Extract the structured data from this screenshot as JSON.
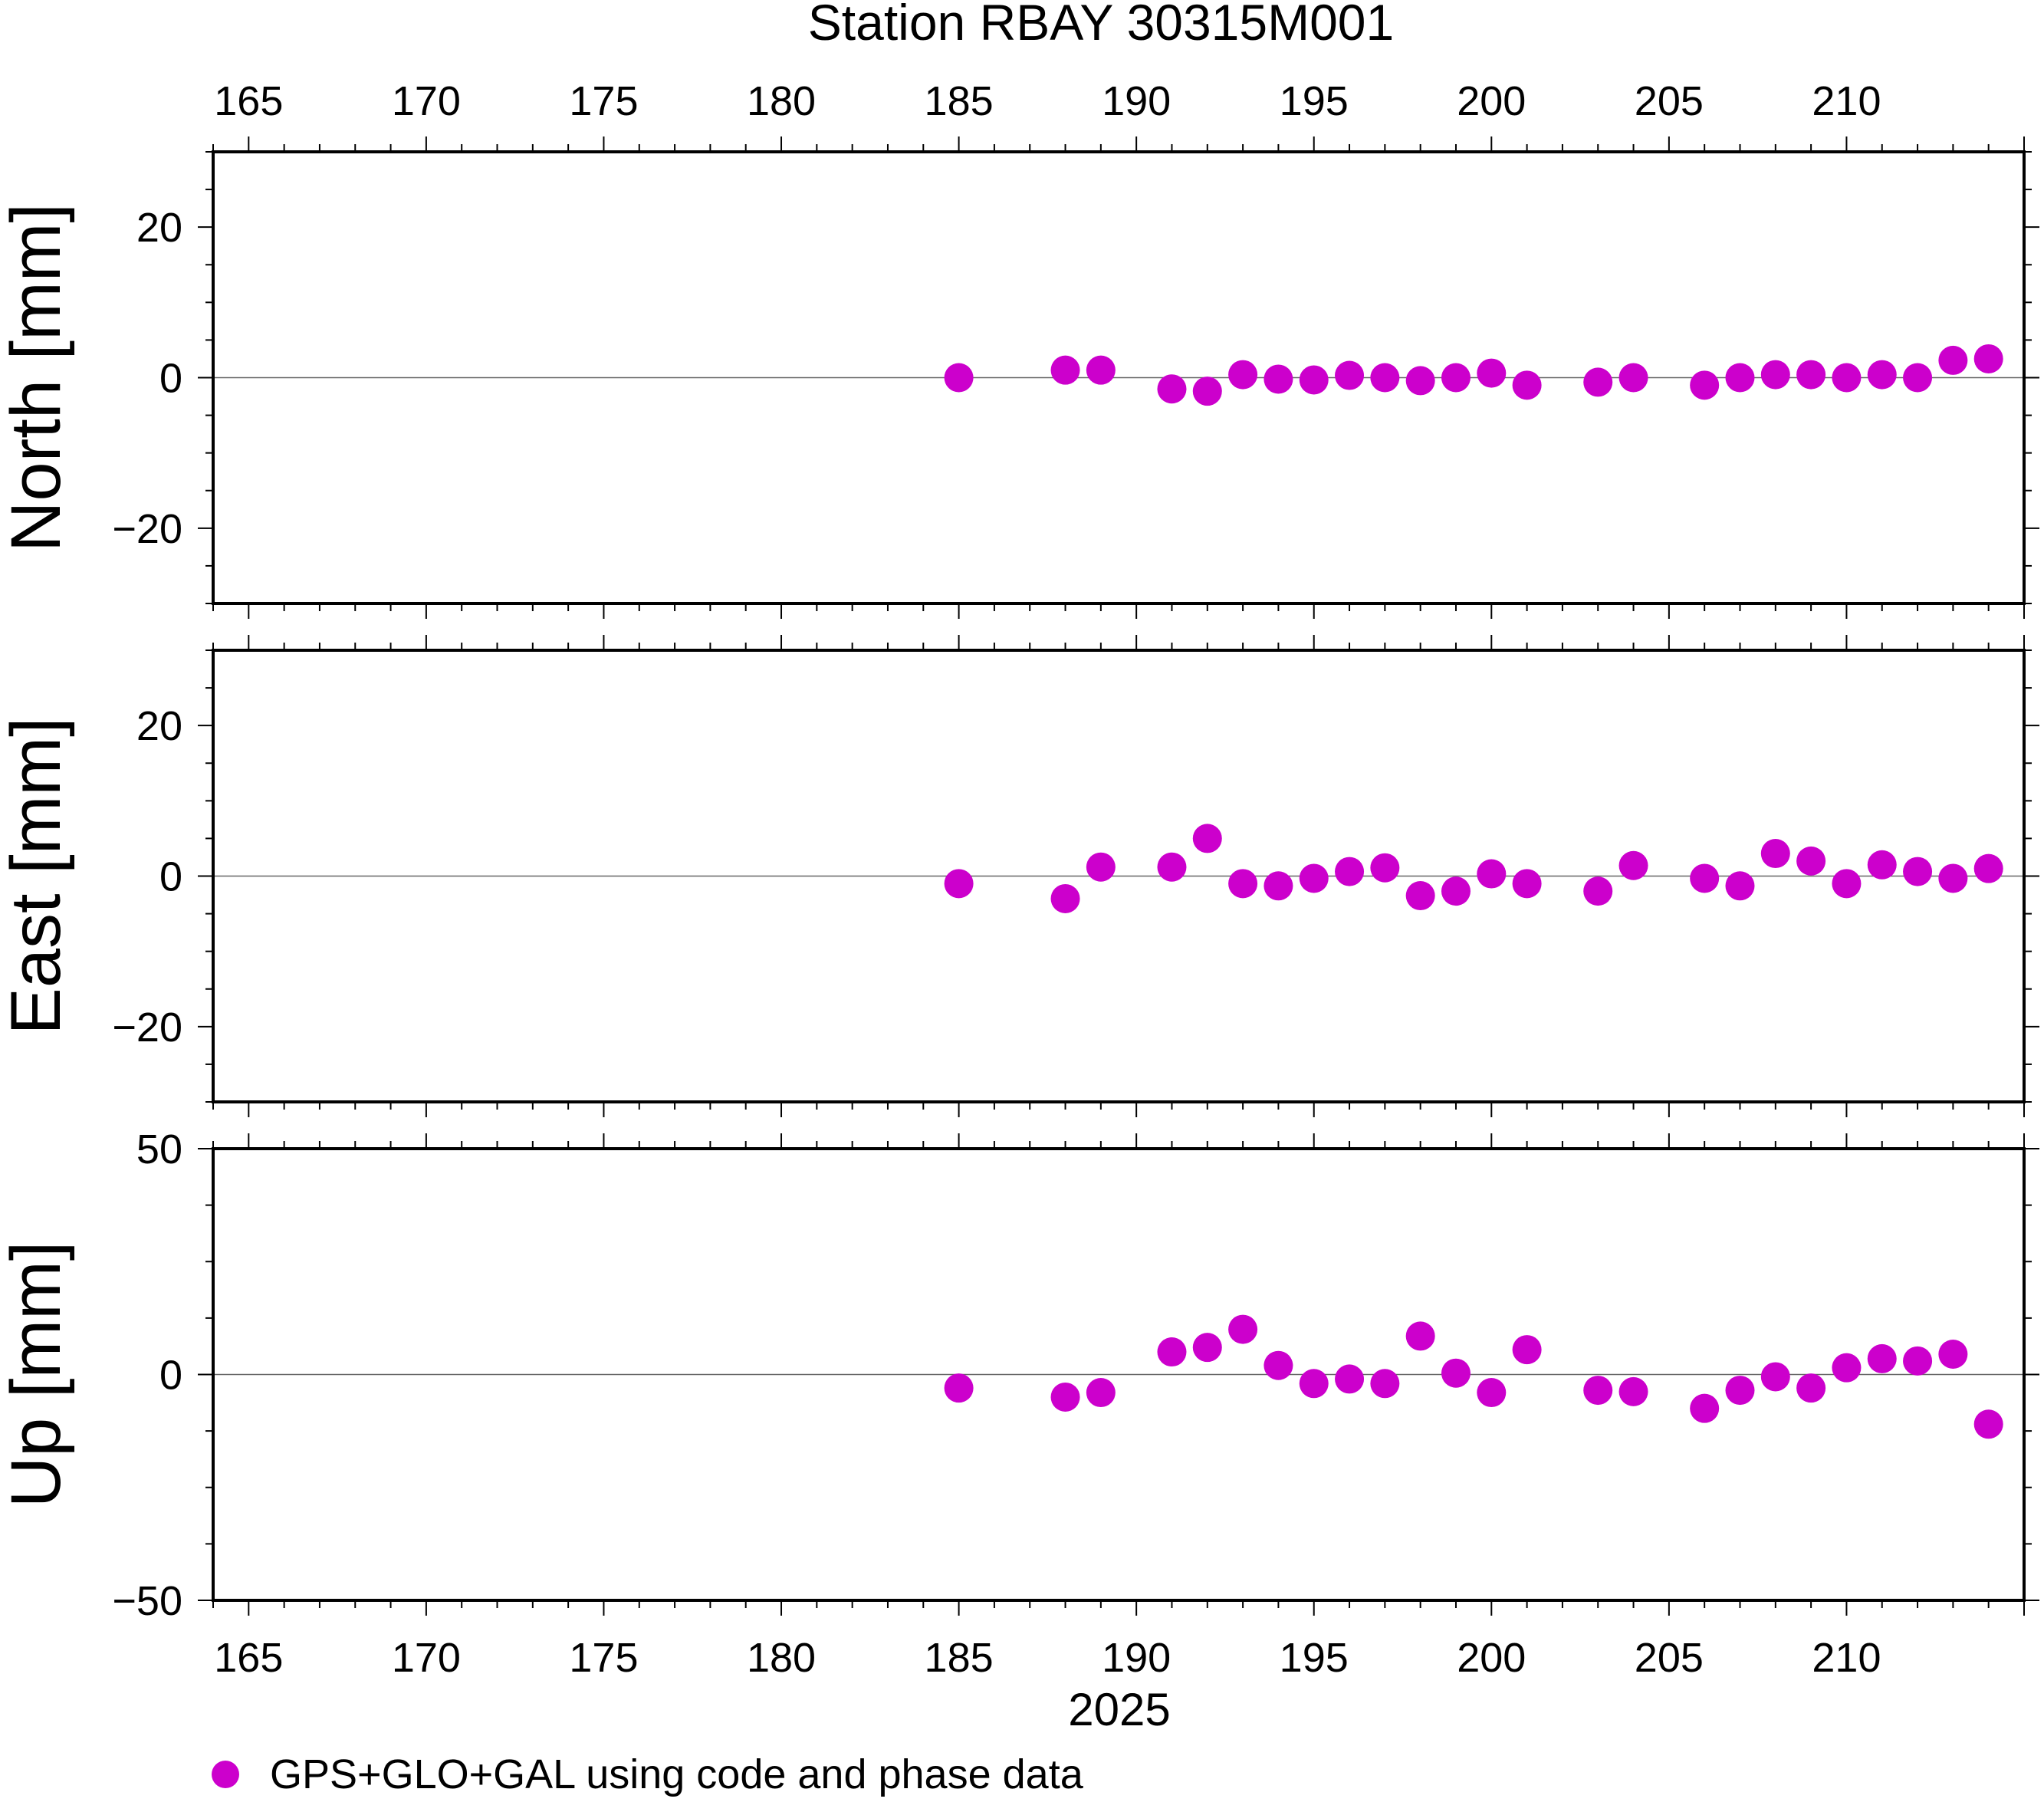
{
  "chart_data": {
    "type": "scatter",
    "title": "Station RBAY 30315M001",
    "xlabel": "2025",
    "xlim": [
      164,
      215
    ],
    "x_ticks": [
      165,
      170,
      175,
      180,
      185,
      190,
      195,
      200,
      205,
      210
    ],
    "grid": false,
    "legend_position": "bottom-left",
    "marker_color": "#cc00cc",
    "series_label": "GPS+GLO+GAL using code and phase data",
    "panels": [
      {
        "id": "north",
        "ylabel": "North [mm]",
        "ylim": [
          -30,
          30
        ],
        "y_ticks": [
          -20,
          0,
          20
        ],
        "y_tick_labels": [
          "−20",
          "0",
          "20"
        ],
        "points": [
          [
            185,
            0.0
          ],
          [
            188,
            1.0
          ],
          [
            189,
            1.0
          ],
          [
            191,
            -1.5
          ],
          [
            192,
            -1.8
          ],
          [
            193,
            0.4
          ],
          [
            194,
            -0.2
          ],
          [
            195,
            -0.3
          ],
          [
            196,
            0.3
          ],
          [
            197,
            0.0
          ],
          [
            198,
            -0.4
          ],
          [
            199,
            0.0
          ],
          [
            200,
            0.6
          ],
          [
            201,
            -1.0
          ],
          [
            203,
            -0.6
          ],
          [
            204,
            0.0
          ],
          [
            206,
            -1.0
          ],
          [
            207,
            0.0
          ],
          [
            208,
            0.4
          ],
          [
            209,
            0.4
          ],
          [
            210,
            0.0
          ],
          [
            211,
            0.4
          ],
          [
            212,
            0.0
          ],
          [
            213,
            2.3
          ],
          [
            214,
            2.5
          ]
        ]
      },
      {
        "id": "east",
        "ylabel": "East [mm]",
        "ylim": [
          -30,
          30
        ],
        "y_ticks": [
          -20,
          0,
          20
        ],
        "y_tick_labels": [
          "−20",
          "0",
          "20"
        ],
        "points": [
          [
            185,
            -1.0
          ],
          [
            188,
            -3.0
          ],
          [
            189,
            1.2
          ],
          [
            191,
            1.2
          ],
          [
            192,
            5.0
          ],
          [
            193,
            -1.0
          ],
          [
            194,
            -1.3
          ],
          [
            195,
            -0.3
          ],
          [
            196,
            0.6
          ],
          [
            197,
            1.1
          ],
          [
            198,
            -2.6
          ],
          [
            199,
            -2.0
          ],
          [
            200,
            0.3
          ],
          [
            201,
            -1.0
          ],
          [
            203,
            -2.0
          ],
          [
            204,
            1.4
          ],
          [
            206,
            -0.3
          ],
          [
            207,
            -1.3
          ],
          [
            208,
            3.0
          ],
          [
            209,
            2.0
          ],
          [
            210,
            -1.0
          ],
          [
            211,
            1.5
          ],
          [
            212,
            0.6
          ],
          [
            213,
            -0.3
          ],
          [
            214,
            1.0
          ]
        ]
      },
      {
        "id": "up",
        "ylabel": "Up [mm]",
        "ylim": [
          -50,
          50
        ],
        "y_ticks": [
          -50,
          0,
          50
        ],
        "y_tick_labels": [
          "−50",
          "0",
          "50"
        ],
        "points": [
          [
            185,
            -3.0
          ],
          [
            188,
            -5.0
          ],
          [
            189,
            -4.0
          ],
          [
            191,
            5.0
          ],
          [
            192,
            6.0
          ],
          [
            193,
            10.0
          ],
          [
            194,
            2.0
          ],
          [
            195,
            -2.0
          ],
          [
            196,
            -1.0
          ],
          [
            197,
            -2.0
          ],
          [
            198,
            8.5
          ],
          [
            199,
            0.3
          ],
          [
            200,
            -4.0
          ],
          [
            201,
            5.5
          ],
          [
            203,
            -3.5
          ],
          [
            204,
            -3.8
          ],
          [
            206,
            -7.5
          ],
          [
            207,
            -3.5
          ],
          [
            208,
            -0.5
          ],
          [
            209,
            -3.0
          ],
          [
            210,
            1.5
          ],
          [
            211,
            3.5
          ],
          [
            212,
            3.0
          ],
          [
            213,
            4.5
          ],
          [
            214,
            -11.0
          ]
        ]
      }
    ]
  }
}
